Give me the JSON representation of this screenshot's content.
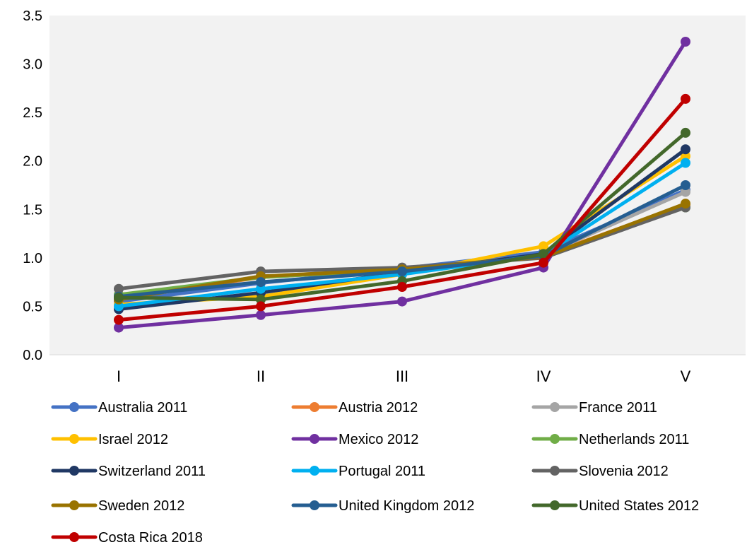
{
  "chart_data": {
    "type": "line",
    "title": "",
    "xlabel": "",
    "ylabel": "",
    "categories": [
      "I",
      "II",
      "III",
      "IV",
      "V"
    ],
    "ylim": [
      0,
      3.5
    ],
    "yticks": [
      "0.0",
      "0.5",
      "1.0",
      "1.5",
      "2.0",
      "2.5",
      "3.0",
      "3.5"
    ],
    "grid": false,
    "legend_position": "bottom",
    "plot_background": "#f2f2f2",
    "series": [
      {
        "name": "Australia 2011",
        "color": "#4472C4",
        "values": [
          0.55,
          0.74,
          0.89,
          1.06,
          1.7
        ]
      },
      {
        "name": "Austria 2012",
        "color": "#ED7D31",
        "values": [
          0.58,
          0.8,
          0.88,
          1.02,
          1.55
        ]
      },
      {
        "name": "France 2011",
        "color": "#A5A5A5",
        "values": [
          0.58,
          0.81,
          0.88,
          1.03,
          1.68
        ]
      },
      {
        "name": "Israel 2012",
        "color": "#FFC000",
        "values": [
          0.52,
          0.6,
          0.83,
          1.12,
          2.05
        ]
      },
      {
        "name": "Mexico 2012",
        "color": "#7030A0",
        "values": [
          0.28,
          0.41,
          0.55,
          0.9,
          3.23
        ]
      },
      {
        "name": "Netherlands 2011",
        "color": "#70AD47",
        "values": [
          0.62,
          0.8,
          0.88,
          1.02,
          1.52
        ]
      },
      {
        "name": "Switzerland 2011",
        "color": "#203864",
        "values": [
          0.47,
          0.64,
          0.85,
          1.04,
          2.12
        ]
      },
      {
        "name": "Portugal 2011",
        "color": "#00B0F0",
        "values": [
          0.5,
          0.68,
          0.83,
          1.03,
          1.98
        ]
      },
      {
        "name": "Slovenia 2012",
        "color": "#636363",
        "values": [
          0.68,
          0.86,
          0.9,
          1.0,
          1.52
        ]
      },
      {
        "name": "Sweden 2012",
        "color": "#997300",
        "values": [
          0.57,
          0.81,
          0.88,
          1.01,
          1.56
        ]
      },
      {
        "name": "United Kingdom 2012",
        "color": "#255E91",
        "values": [
          0.6,
          0.75,
          0.86,
          1.02,
          1.75
        ]
      },
      {
        "name": "United States 2012",
        "color": "#43682B",
        "values": [
          0.59,
          0.57,
          0.76,
          1.04,
          2.29
        ]
      },
      {
        "name": "Costa Rica 2018",
        "color": "#C00000",
        "values": [
          0.36,
          0.5,
          0.7,
          0.95,
          2.64
        ]
      }
    ]
  }
}
